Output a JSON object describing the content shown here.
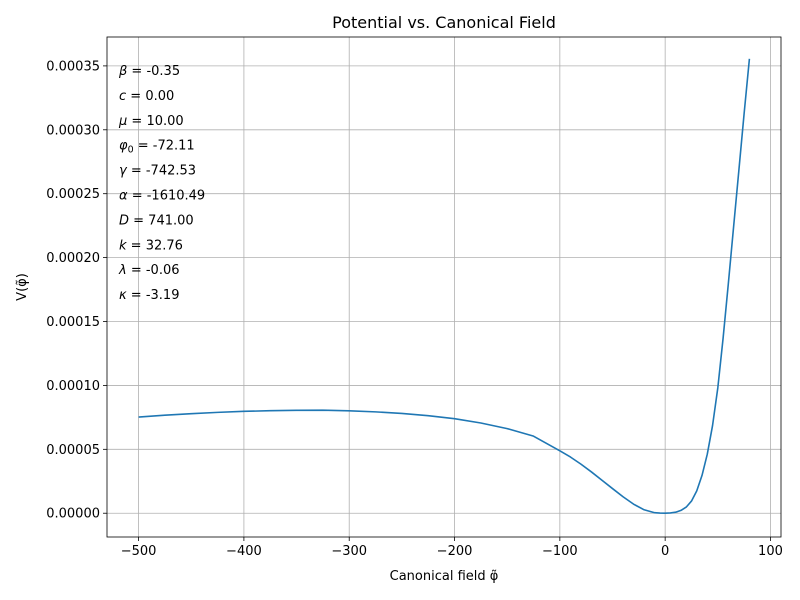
{
  "chart_data": {
    "type": "line",
    "title": "Potential vs. Canonical Field",
    "xlabel": "Canonical field φ̃",
    "ylabel": "V(φ̃)",
    "xlim": [
      -530,
      110
    ],
    "ylim": [
      -1.86e-05,
      0.0003726
    ],
    "xticks": [
      -500,
      -400,
      -300,
      -200,
      -100,
      0,
      100
    ],
    "xtick_labels": [
      "−500",
      "−400",
      "−300",
      "−200",
      "−100",
      "0",
      "100"
    ],
    "yticks": [
      0,
      5e-05,
      0.0001,
      0.00015,
      0.0002,
      0.00025,
      0.0003,
      0.00035
    ],
    "ytick_labels": [
      "0.00000",
      "0.00005",
      "0.00010",
      "0.00015",
      "0.00020",
      "0.00025",
      "0.00030",
      "0.00035"
    ],
    "grid": true,
    "line_color": "#1f77b4",
    "series": [
      {
        "x": [
          -500,
          -475,
          -450,
          -425,
          -400,
          -375,
          -350,
          -325,
          -300,
          -275,
          -250,
          -225,
          -200,
          -175,
          -150,
          -125,
          -100,
          -90,
          -80,
          -70,
          -60,
          -50,
          -40,
          -30,
          -20,
          -10,
          -5,
          0,
          5,
          10,
          15,
          20,
          25,
          30,
          35,
          40,
          45,
          50,
          55,
          60,
          65,
          70,
          75,
          80
        ],
        "values": [
          7.52e-05,
          7.67e-05,
          7.79e-05,
          7.89e-05,
          7.97e-05,
          8.02e-05,
          8.05e-05,
          8.06e-05,
          8.01e-05,
          7.93e-05,
          7.81e-05,
          7.63e-05,
          7.4e-05,
          7.06e-05,
          6.62e-05,
          6.03e-05,
          4.88e-05,
          4.4e-05,
          3.84e-05,
          3.23e-05,
          2.58e-05,
          1.93e-05,
          1.29e-05,
          7.1e-06,
          2.7e-06,
          4e-07,
          1e-07,
          0.0,
          2e-07,
          8e-07,
          2.2e-06,
          4.8e-06,
          9.5e-06,
          1.75e-05,
          2.96e-05,
          4.62e-05,
          6.86e-05,
          9.81e-05,
          0.0001368,
          0.0001797,
          0.0002242,
          0.0002684,
          0.0003129,
          0.0003555
        ]
      }
    ],
    "annotations": [
      {
        "symbol": "β",
        "sub": "",
        "value": " = -0.35"
      },
      {
        "symbol": "c",
        "sub": "",
        "value": " = 0.00"
      },
      {
        "symbol": "μ",
        "sub": "",
        "value": " = 10.00"
      },
      {
        "symbol": "φ",
        "sub": "0",
        "value": " = -72.11"
      },
      {
        "symbol": "γ",
        "sub": "",
        "value": " = -742.53"
      },
      {
        "symbol": "α",
        "sub": "",
        "value": " = -1610.49"
      },
      {
        "symbol": "D",
        "sub": "",
        "value": " = 741.00"
      },
      {
        "symbol": "k",
        "sub": "",
        "value": " = 32.76"
      },
      {
        "symbol": "λ",
        "sub": "",
        "value": " = -0.06"
      },
      {
        "symbol": "κ",
        "sub": "",
        "value": " = -3.19"
      }
    ]
  }
}
